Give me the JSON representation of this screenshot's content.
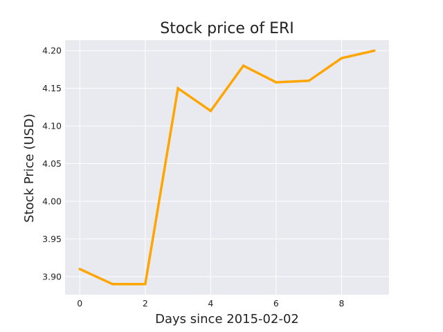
{
  "chart_data": {
    "type": "line",
    "title": "Stock price of ERI",
    "xlabel": "Days since 2015-02-02",
    "ylabel": "Stock Price (USD)",
    "x": [
      0,
      1,
      2,
      3,
      4,
      5,
      6,
      7,
      8,
      9
    ],
    "series": [
      {
        "values": [
          3.91,
          3.89,
          3.89,
          4.15,
          4.12,
          4.18,
          4.158,
          4.16,
          4.19,
          4.2
        ]
      }
    ],
    "xlim": [
      -0.45,
      9.45
    ],
    "ylim": [
      3.876,
      4.214
    ],
    "xticks": [
      0,
      2,
      4,
      6,
      8
    ],
    "xtick_labels": [
      "0",
      "2",
      "4",
      "6",
      "8"
    ],
    "yticks": [
      3.9,
      3.95,
      4.0,
      4.05,
      4.1,
      4.15,
      4.2
    ],
    "ytick_labels": [
      "3.90",
      "3.95",
      "4.00",
      "4.05",
      "4.10",
      "4.15",
      "4.20"
    ],
    "grid": true,
    "colors": {
      "line": "#ffa500",
      "plot_background": "#e9e9f0",
      "grid": "#ffffff"
    }
  }
}
